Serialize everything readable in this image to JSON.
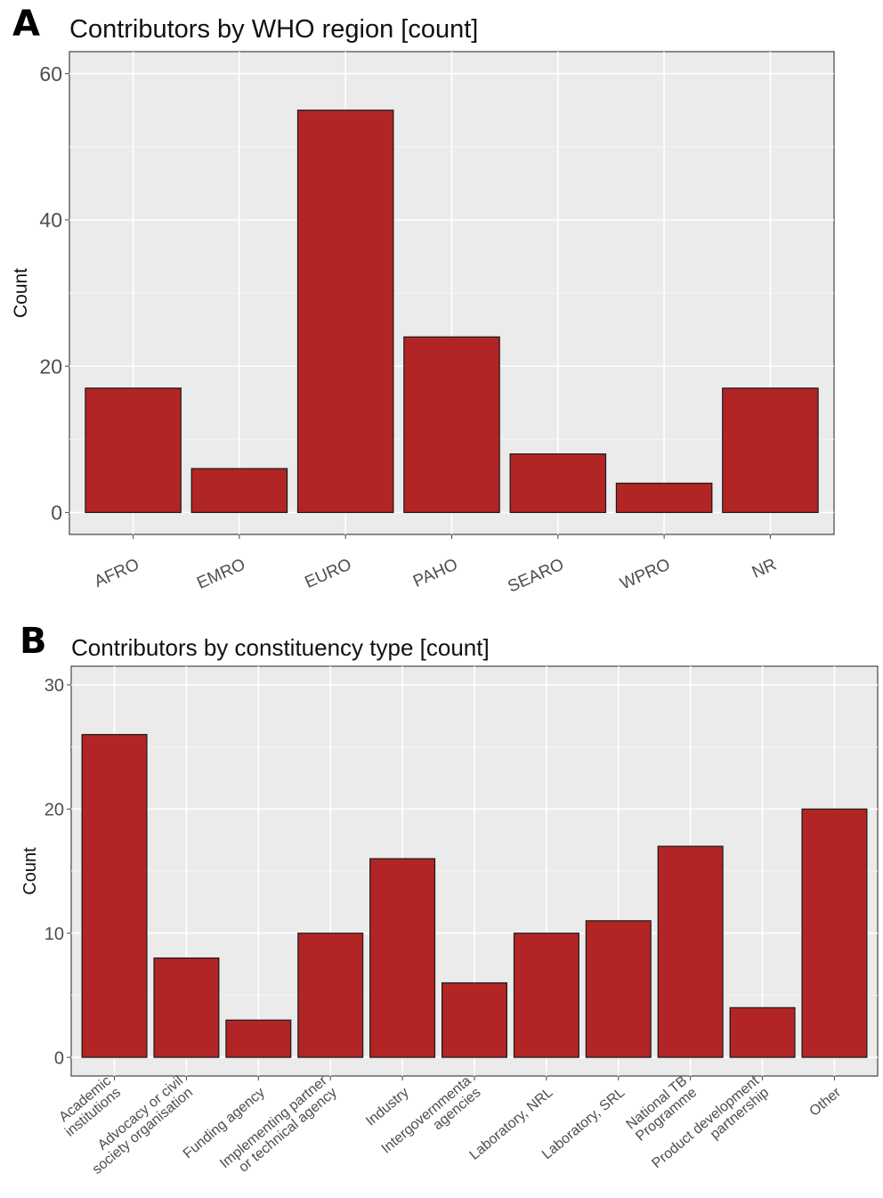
{
  "chart_data": [
    {
      "type": "bar",
      "panel_label": "A",
      "title": "Contributors by WHO region [count]",
      "xlabel": "",
      "ylabel": "Count",
      "categories": [
        "AFRO",
        "EMRO",
        "EURO",
        "PAHO",
        "SEARO",
        "WPRO",
        "NR"
      ],
      "values": [
        17,
        6,
        55,
        24,
        8,
        4,
        17
      ],
      "ylim": [
        0,
        60
      ],
      "yticks": [
        0,
        20,
        40,
        60
      ],
      "bar_color": "#b22525",
      "grid": true,
      "legend": "none"
    },
    {
      "type": "bar",
      "panel_label": "B",
      "title": "Contributors by constituency type [count]",
      "xlabel": "",
      "ylabel": "Count",
      "categories": [
        "Academic\ninstitutions",
        "Advocacy or civil\nsociety organisation",
        "Funding agency",
        "Implementing partner\nor technical agency",
        "Industry",
        "Intergovernmenta\nagencies",
        "Laboratory, NRL",
        "Laboratory, SRL",
        "National TB\nProgramme",
        "Product development\npartnership",
        "Other"
      ],
      "values": [
        26,
        8,
        3,
        10,
        16,
        6,
        10,
        11,
        17,
        4,
        20
      ],
      "ylim": [
        0,
        30
      ],
      "yticks": [
        0,
        10,
        20,
        30
      ],
      "bar_color": "#b22525",
      "grid": true,
      "legend": "none"
    }
  ]
}
